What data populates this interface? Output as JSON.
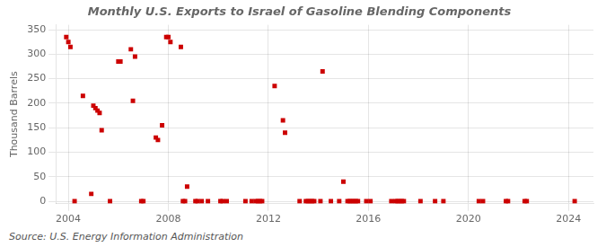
{
  "chart_data": {
    "type": "scatter",
    "title": "Monthly U.S. Exports to Israel of Gasoline Blending Components",
    "ylabel": "Thousand Barrels",
    "annotation": "Source: U.S. Energy Information Administration",
    "color": "#cc0000",
    "marker": "square",
    "grid": true,
    "xlim": [
      2003.5,
      2025.0
    ],
    "ylim": [
      -5,
      360
    ],
    "xticks": [
      2004,
      2008,
      2012,
      2016,
      2020,
      2024
    ],
    "yticks": [
      0,
      50,
      100,
      150,
      200,
      250,
      300,
      350
    ],
    "x": [
      2003.917,
      2004.0,
      2004.083,
      2004.583,
      2004.917,
      2004.25,
      2005.0,
      2005.083,
      2005.167,
      2005.25,
      2005.333,
      2005.667,
      2006.0,
      2006.083,
      2006.5,
      2006.583,
      2006.667,
      2006.917,
      2007.0,
      2007.5,
      2007.583,
      2007.75,
      2007.917,
      2008.0,
      2008.083,
      2008.5,
      2008.583,
      2008.667,
      2008.75,
      2009.083,
      2009.167,
      2009.333,
      2009.583,
      2010.083,
      2010.167,
      2010.333,
      2011.083,
      2011.333,
      2011.5,
      2011.583,
      2011.667,
      2011.75,
      2012.25,
      2012.583,
      2012.667,
      2013.25,
      2013.5,
      2013.583,
      2013.667,
      2013.75,
      2013.833,
      2014.083,
      2014.167,
      2014.5,
      2014.833,
      2015.0,
      2015.167,
      2015.25,
      2015.333,
      2015.417,
      2015.5,
      2015.583,
      2015.917,
      2016.083,
      2016.917,
      2017.083,
      2017.167,
      2017.25,
      2017.333,
      2017.417,
      2018.083,
      2018.667,
      2019.0,
      2020.417,
      2020.583,
      2021.5,
      2021.583,
      2022.25,
      2022.333,
      2024.25
    ],
    "values": [
      335,
      325,
      315,
      215,
      15,
      0,
      195,
      190,
      185,
      180,
      145,
      0,
      285,
      285,
      310,
      205,
      295,
      0,
      0,
      130,
      125,
      155,
      335,
      335,
      325,
      315,
      0,
      0,
      30,
      0,
      0,
      0,
      0,
      0,
      0,
      0,
      0,
      0,
      0,
      0,
      0,
      0,
      235,
      165,
      140,
      0,
      0,
      0,
      0,
      0,
      0,
      0,
      265,
      0,
      0,
      40,
      0,
      0,
      0,
      0,
      0,
      0,
      0,
      0,
      0,
      0,
      0,
      0,
      0,
      0,
      0,
      0,
      0,
      0,
      0,
      0,
      0,
      0,
      0,
      0
    ]
  }
}
